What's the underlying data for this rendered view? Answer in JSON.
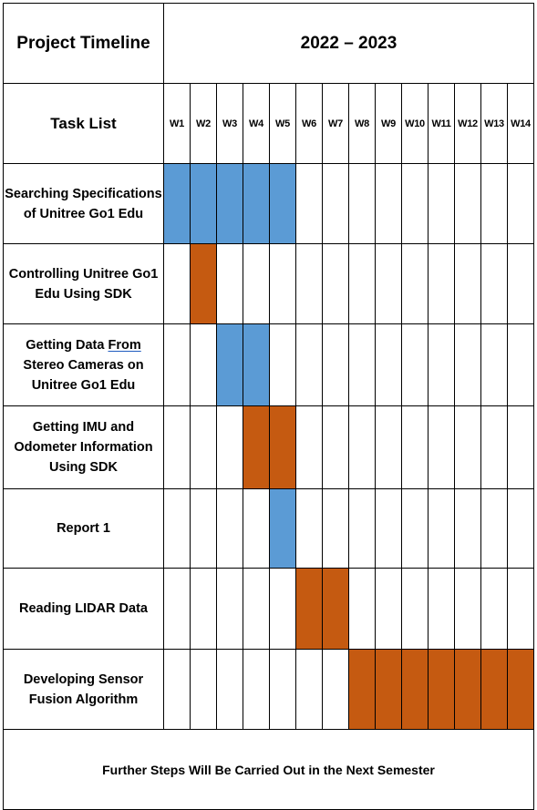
{
  "header": {
    "title": "Project Timeline",
    "years": "2022 – 2023",
    "task_list_label": "Task List"
  },
  "weeks": [
    "W1",
    "W2",
    "W3",
    "W4",
    "W5",
    "W6",
    "W7",
    "W8",
    "W9",
    "W10",
    "W11",
    "W12",
    "W13",
    "W14"
  ],
  "colors": {
    "blue": "#5b9bd5",
    "orange": "#c55a11"
  },
  "tasks": [
    {
      "lines": [
        "Searching Specifications",
        "of Unitree Go1 Edu"
      ],
      "start": 1,
      "end": 5,
      "color": "blue"
    },
    {
      "lines": [
        "Controlling Unitree Go1",
        "Edu Using SDK"
      ],
      "start": 2,
      "end": 2,
      "color": "orange"
    },
    {
      "lines": [
        "Getting Data From",
        "Stereo Cameras on",
        "Unitree Go1 Edu"
      ],
      "start": 3,
      "end": 4,
      "color": "blue"
    },
    {
      "lines": [
        "Getting IMU and",
        "Odometer Information",
        "Using SDK"
      ],
      "start": 4,
      "end": 5,
      "color": "orange"
    },
    {
      "lines": [
        "Report 1"
      ],
      "start": 5,
      "end": 5,
      "color": "blue"
    },
    {
      "lines": [
        "Reading LIDAR Data"
      ],
      "start": 6,
      "end": 7,
      "color": "orange"
    },
    {
      "lines": [
        "Developing Sensor",
        "Fusion Algorithm"
      ],
      "start": 8,
      "end": 14,
      "color": "orange"
    }
  ],
  "footer": {
    "note": "Further Steps Will Be Carried Out in the Next Semester"
  }
}
